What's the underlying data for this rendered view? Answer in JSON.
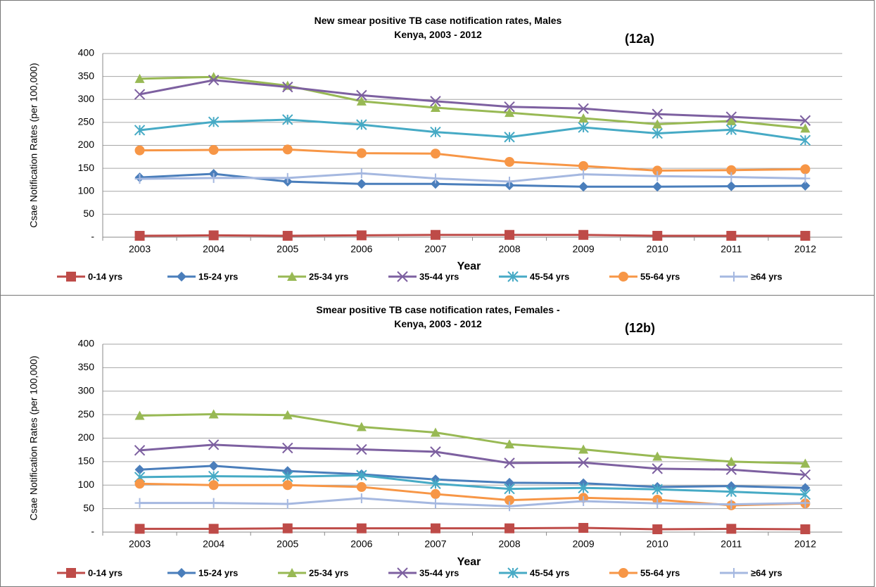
{
  "chart_data": [
    {
      "type": "line",
      "title": "New smear positive TB case notification rates, Males\nKenya, 2003 - 2012",
      "annotation": "(12a)",
      "x_label": "Year",
      "y_label": "Csae Notification Rates (per 100,000)",
      "categories": [
        "2003",
        "2004",
        "2005",
        "2006",
        "2007",
        "2008",
        "2009",
        "2010",
        "2011",
        "2012"
      ],
      "ylim": [
        0,
        400
      ],
      "yticks": [
        {
          "value": 0,
          "label": "-"
        },
        50,
        100,
        150,
        200,
        250,
        300,
        350,
        400
      ],
      "grid": true,
      "series": [
        {
          "name": "0-14 yrs",
          "color": "#be4b48",
          "marker": "square",
          "values": [
            3,
            4,
            3,
            4,
            5,
            5,
            5,
            3,
            3,
            3
          ]
        },
        {
          "name": "15-24 yrs",
          "color": "#4a7ebb",
          "marker": "diamond",
          "values": [
            130,
            138,
            121,
            116,
            116,
            113,
            110,
            110,
            111,
            112
          ]
        },
        {
          "name": "25-34 yrs",
          "color": "#98b954",
          "marker": "triangle",
          "values": [
            345,
            349,
            330,
            296,
            282,
            271,
            259,
            246,
            253,
            237
          ]
        },
        {
          "name": "35-44 yrs",
          "color": "#7d60a0",
          "marker": "x",
          "values": [
            311,
            342,
            327,
            309,
            296,
            284,
            280,
            268,
            262,
            254
          ]
        },
        {
          "name": "45-54 yrs",
          "color": "#46aac5",
          "marker": "star",
          "values": [
            233,
            251,
            256,
            245,
            229,
            218,
            239,
            226,
            234,
            211
          ]
        },
        {
          "name": "55-64 yrs",
          "color": "#f79646",
          "marker": "circle",
          "values": [
            189,
            190,
            191,
            183,
            182,
            164,
            155,
            145,
            146,
            148
          ]
        },
        {
          "name": "≥64 yrs",
          "color": "#a5b8e0",
          "marker": "plus",
          "values": [
            127,
            129,
            129,
            139,
            128,
            121,
            137,
            133,
            131,
            128
          ]
        }
      ]
    },
    {
      "type": "line",
      "title": "Smear positive TB case notification rates, Females -\nKenya, 2003 - 2012",
      "annotation": "(12b)",
      "x_label": "Year",
      "y_label": "Csae Notification Rates (per 100,000)",
      "categories": [
        "2003",
        "2004",
        "2005",
        "2006",
        "2007",
        "2008",
        "2009",
        "2010",
        "2011",
        "2012"
      ],
      "ylim": [
        0,
        400
      ],
      "yticks": [
        {
          "value": 0,
          "label": "-"
        },
        50,
        100,
        150,
        200,
        250,
        300,
        350,
        400
      ],
      "grid": true,
      "series": [
        {
          "name": "0-14 yrs",
          "color": "#be4b48",
          "marker": "square",
          "values": [
            7,
            7,
            8,
            8,
            8,
            8,
            9,
            6,
            7,
            6
          ]
        },
        {
          "name": "15-24 yrs",
          "color": "#4a7ebb",
          "marker": "diamond",
          "values": [
            133,
            141,
            130,
            123,
            112,
            105,
            104,
            96,
            98,
            94
          ]
        },
        {
          "name": "25-34 yrs",
          "color": "#98b954",
          "marker": "triangle",
          "values": [
            248,
            251,
            249,
            224,
            212,
            187,
            176,
            161,
            150,
            146
          ]
        },
        {
          "name": "35-44 yrs",
          "color": "#7d60a0",
          "marker": "x",
          "values": [
            174,
            186,
            179,
            176,
            171,
            147,
            148,
            135,
            133,
            122
          ]
        },
        {
          "name": "45-54 yrs",
          "color": "#46aac5",
          "marker": "star",
          "values": [
            117,
            119,
            118,
            121,
            103,
            92,
            94,
            91,
            86,
            80
          ]
        },
        {
          "name": "55-64 yrs",
          "color": "#f79646",
          "marker": "circle",
          "values": [
            103,
            100,
            100,
            96,
            81,
            68,
            73,
            69,
            57,
            61
          ]
        },
        {
          "name": "≥64 yrs",
          "color": "#a5b8e0",
          "marker": "plus",
          "values": [
            62,
            62,
            60,
            72,
            61,
            55,
            66,
            61,
            59,
            62
          ]
        }
      ]
    }
  ]
}
